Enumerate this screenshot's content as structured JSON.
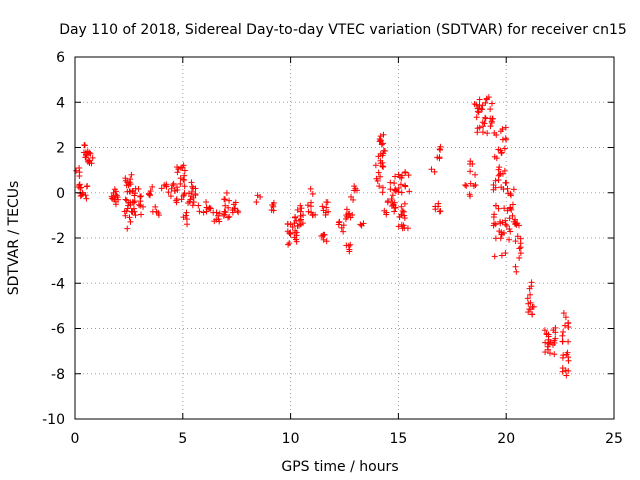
{
  "chart_data": {
    "type": "scatter",
    "title": "Day 110 of 2018, Sidereal Day-to-day VTEC variation (SDTVAR) for receiver cn15",
    "xlabel": "GPS time / hours",
    "ylabel": "SDTVAR / TECUs",
    "xlim": [
      0,
      25
    ],
    "ylim": [
      -10,
      6
    ],
    "xticks": [
      0,
      5,
      10,
      15,
      20,
      25
    ],
    "yticks": [
      -10,
      -8,
      -6,
      -4,
      -2,
      0,
      2,
      4,
      6
    ],
    "grid": true,
    "marker": "+",
    "color": "#ff0000",
    "series": [
      {
        "name": "SDTVAR",
        "clusters": [
          {
            "x": [
              0.0,
              0.3
            ],
            "y": [
              0.0,
              1.1
            ],
            "n": 8
          },
          {
            "x": [
              0.2,
              0.6
            ],
            "y": [
              -0.4,
              0.4
            ],
            "n": 10
          },
          {
            "x": [
              0.3,
              0.6
            ],
            "y": [
              1.5,
              2.2
            ],
            "n": 10
          },
          {
            "x": [
              0.5,
              0.9
            ],
            "y": [
              1.3,
              1.8
            ],
            "n": 8
          },
          {
            "x": [
              1.7,
              2.0
            ],
            "y": [
              -0.8,
              0.2
            ],
            "n": 14
          },
          {
            "x": [
              2.3,
              2.7
            ],
            "y": [
              -1.6,
              0.8
            ],
            "n": 28
          },
          {
            "x": [
              2.6,
              3.2
            ],
            "y": [
              -1.0,
              0.2
            ],
            "n": 20
          },
          {
            "x": [
              3.3,
              3.6
            ],
            "y": [
              -0.3,
              0.3
            ],
            "n": 6
          },
          {
            "x": [
              3.6,
              3.9
            ],
            "y": [
              -1.0,
              -0.6
            ],
            "n": 5
          },
          {
            "x": [
              4.0,
              4.8
            ],
            "y": [
              -0.2,
              0.4
            ],
            "n": 12
          },
          {
            "x": [
              4.6,
              5.2
            ],
            "y": [
              -0.5,
              1.3
            ],
            "n": 20
          },
          {
            "x": [
              5.0,
              5.6
            ],
            "y": [
              -1.4,
              0.6
            ],
            "n": 22
          },
          {
            "x": [
              5.7,
              6.3
            ],
            "y": [
              -0.9,
              -0.4
            ],
            "n": 10
          },
          {
            "x": [
              6.4,
              6.8
            ],
            "y": [
              -1.3,
              -0.8
            ],
            "n": 8
          },
          {
            "x": [
              6.9,
              7.2
            ],
            "y": [
              -1.2,
              0.1
            ],
            "n": 12
          },
          {
            "x": [
              7.3,
              7.6
            ],
            "y": [
              -0.9,
              -0.4
            ],
            "n": 8
          },
          {
            "x": [
              8.4,
              8.6
            ],
            "y": [
              -0.5,
              -0.1
            ],
            "n": 3
          },
          {
            "x": [
              9.0,
              9.4
            ],
            "y": [
              -0.8,
              -0.4
            ],
            "n": 6
          },
          {
            "x": [
              9.8,
              10.3
            ],
            "y": [
              -2.3,
              -1.2
            ],
            "n": 20
          },
          {
            "x": [
              10.1,
              10.6
            ],
            "y": [
              -1.5,
              -0.5
            ],
            "n": 14
          },
          {
            "x": [
              10.8,
              11.2
            ],
            "y": [
              -1.0,
              0.2
            ],
            "n": 10
          },
          {
            "x": [
              11.4,
              11.7
            ],
            "y": [
              -2.3,
              -1.8
            ],
            "n": 6
          },
          {
            "x": [
              11.4,
              11.8
            ],
            "y": [
              -1.0,
              -0.3
            ],
            "n": 8
          },
          {
            "x": [
              12.2,
              12.5
            ],
            "y": [
              -1.8,
              -1.2
            ],
            "n": 6
          },
          {
            "x": [
              12.5,
              12.8
            ],
            "y": [
              -2.6,
              -2.3
            ],
            "n": 5
          },
          {
            "x": [
              12.5,
              12.9
            ],
            "y": [
              -1.3,
              -0.4
            ],
            "n": 8
          },
          {
            "x": [
              12.8,
              13.1
            ],
            "y": [
              -0.4,
              0.3
            ],
            "n": 6
          },
          {
            "x": [
              13.2,
              13.4
            ],
            "y": [
              -1.6,
              -1.3
            ],
            "n": 3
          },
          {
            "x": [
              13.9,
              14.3
            ],
            "y": [
              0.0,
              1.8
            ],
            "n": 18
          },
          {
            "x": [
              14.1,
              14.4
            ],
            "y": [
              1.8,
              2.7
            ],
            "n": 10
          },
          {
            "x": [
              14.3,
              14.9
            ],
            "y": [
              -1.0,
              0.5
            ],
            "n": 20
          },
          {
            "x": [
              14.8,
              15.2
            ],
            "y": [
              0.0,
              0.9
            ],
            "n": 10
          },
          {
            "x": [
              15.0,
              15.5
            ],
            "y": [
              -1.8,
              -0.4
            ],
            "n": 16
          },
          {
            "x": [
              15.3,
              15.6
            ],
            "y": [
              0.0,
              1.0
            ],
            "n": 6
          },
          {
            "x": [
              16.5,
              16.7
            ],
            "y": [
              0.9,
              1.1
            ],
            "n": 2
          },
          {
            "x": [
              16.7,
              17.0
            ],
            "y": [
              -0.9,
              -0.4
            ],
            "n": 6
          },
          {
            "x": [
              16.8,
              17.0
            ],
            "y": [
              1.5,
              2.1
            ],
            "n": 6
          },
          {
            "x": [
              18.0,
              18.2
            ],
            "y": [
              0.3,
              0.5
            ],
            "n": 2
          },
          {
            "x": [
              18.3,
              18.6
            ],
            "y": [
              -0.2,
              1.8
            ],
            "n": 10
          },
          {
            "x": [
              18.5,
              19.4
            ],
            "y": [
              2.6,
              4.3
            ],
            "n": 34
          },
          {
            "x": [
              19.4,
              20.0
            ],
            "y": [
              0.0,
              3.0
            ],
            "n": 30
          },
          {
            "x": [
              19.4,
              20.0
            ],
            "y": [
              -2.9,
              -0.5
            ],
            "n": 22
          },
          {
            "x": [
              19.9,
              20.4
            ],
            "y": [
              -2.3,
              0.6
            ],
            "n": 20
          },
          {
            "x": [
              20.4,
              20.7
            ],
            "y": [
              -3.5,
              -1.0
            ],
            "n": 16
          },
          {
            "x": [
              21.0,
              21.3
            ],
            "y": [
              -5.5,
              -3.9
            ],
            "n": 14
          },
          {
            "x": [
              21.7,
              22.3
            ],
            "y": [
              -7.2,
              -5.9
            ],
            "n": 22
          },
          {
            "x": [
              22.6,
              22.9
            ],
            "y": [
              -8.1,
              -5.2
            ],
            "n": 22
          }
        ]
      }
    ]
  }
}
